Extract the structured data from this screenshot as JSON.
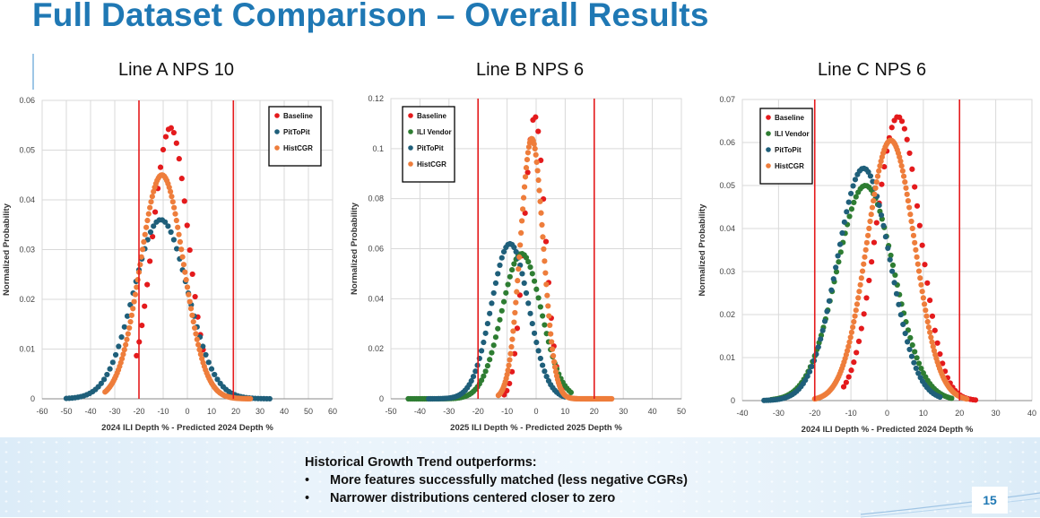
{
  "slide": {
    "title": "Full Dataset Comparison – Overall Results",
    "page_number": "15",
    "summary": {
      "heading": "Historical Growth Trend outperforms:",
      "bullets": [
        "More features successfully matched (less negative CGRs)",
        "Narrower distributions centered closer to zero"
      ]
    }
  },
  "colors": {
    "title": "#1f78b4",
    "Baseline": "#e41a1c",
    "ILI Vendor": "#2e7d32",
    "PitToPit": "#1f5f7a",
    "HistCGR": "#ee7d3b",
    "limit_line": "#e41a1c"
  },
  "chart_data": [
    {
      "type": "scatter",
      "panel_title": "Line A NPS 10",
      "xlabel": "2024 ILI Depth % - Predicted 2024 Depth %",
      "ylabel": "Normalized Probability",
      "xlim": [
        -60,
        60
      ],
      "ylim": [
        0,
        0.06
      ],
      "xticks": [
        "-60",
        "-50",
        "-40",
        "-30",
        "-20",
        "-10",
        "0",
        "10",
        "20",
        "30",
        "40",
        "50",
        "60"
      ],
      "yticks": [
        "0",
        "0.01",
        "0.02",
        "0.03",
        "0.04",
        "0.05",
        "0.06"
      ],
      "grid": true,
      "legend_position": "top-right",
      "vlines": [
        -20,
        19
      ],
      "series": [
        {
          "name": "Baseline",
          "mean": -7,
          "sd": 7.3,
          "peak": 0.0545,
          "x_range": [
            -21,
            7
          ],
          "step": 1.1
        },
        {
          "name": "PitToPit",
          "mean": -11,
          "sd": 11.1,
          "peak": 0.036,
          "x_range": [
            -50,
            34
          ],
          "step": 1.2
        },
        {
          "name": "HistCGR",
          "mean": -10.5,
          "sd": 8.9,
          "peak": 0.045,
          "x_range": [
            -34,
            26
          ],
          "step": 0.5
        }
      ]
    },
    {
      "type": "scatter",
      "panel_title": "Line B NPS 6",
      "xlabel": "2025 ILI Depth % - Predicted 2025 Depth %",
      "ylabel": "Normalized Probability",
      "xlim": [
        -50,
        50
      ],
      "ylim": [
        0,
        0.12
      ],
      "xticks": [
        "-50",
        "-40",
        "-30",
        "-20",
        "-10",
        "0",
        "10",
        "20",
        "30",
        "40",
        "50"
      ],
      "yticks": [
        "0",
        "0.02",
        "0.04",
        "0.06",
        "0.08",
        "0.1",
        "0.12"
      ],
      "grid": true,
      "legend_position": "top-left",
      "vlines": [
        -20,
        20
      ],
      "series": [
        {
          "name": "Baseline",
          "mean": -0.5,
          "sd": 3.6,
          "peak": 0.113,
          "x_range": [
            -11,
            9
          ],
          "step": 0.9
        },
        {
          "name": "ILI Vendor",
          "mean": -5,
          "sd": 6.8,
          "peak": 0.058,
          "x_range": [
            -44,
            12
          ],
          "step": 0.7
        },
        {
          "name": "PitToPit",
          "mean": -9,
          "sd": 6.4,
          "peak": 0.062,
          "x_range": [
            -37,
            10
          ],
          "step": 0.7
        },
        {
          "name": "HistCGR",
          "mean": -1.5,
          "sd": 3.9,
          "peak": 0.104,
          "x_range": [
            -13,
            26
          ],
          "step": 0.3
        }
      ]
    },
    {
      "type": "scatter",
      "panel_title": "Line C NPS 6",
      "xlabel": "2024 ILI Depth % - Predicted 2024 Depth %",
      "ylabel": "Normalized Probability",
      "xlim": [
        -40,
        40
      ],
      "ylim": [
        0,
        0.07
      ],
      "xticks": [
        "-40",
        "-30",
        "-20",
        "-10",
        "0",
        "10",
        "20",
        "30",
        "40"
      ],
      "yticks": [
        "0",
        "0.01",
        "0.02",
        "0.03",
        "0.04",
        "0.05",
        "0.06",
        "0.07"
      ],
      "grid": true,
      "legend_position": "top-left",
      "vlines": [
        -20,
        20
      ],
      "series": [
        {
          "name": "Baseline",
          "mean": 3,
          "sd": 6.1,
          "peak": 0.066,
          "x_range": [
            -12,
            25
          ],
          "step": 0.7
        },
        {
          "name": "ILI Vendor",
          "mean": -6,
          "sd": 7.9,
          "peak": 0.05,
          "x_range": [
            -32,
            18
          ],
          "step": 0.6
        },
        {
          "name": "PitToPit",
          "mean": -6.5,
          "sd": 7.3,
          "peak": 0.054,
          "x_range": [
            -34,
            15
          ],
          "step": 0.6
        },
        {
          "name": "HistCGR",
          "mean": 1,
          "sd": 6.6,
          "peak": 0.0605,
          "x_range": [
            -20,
            22
          ],
          "step": 0.3
        }
      ]
    }
  ]
}
